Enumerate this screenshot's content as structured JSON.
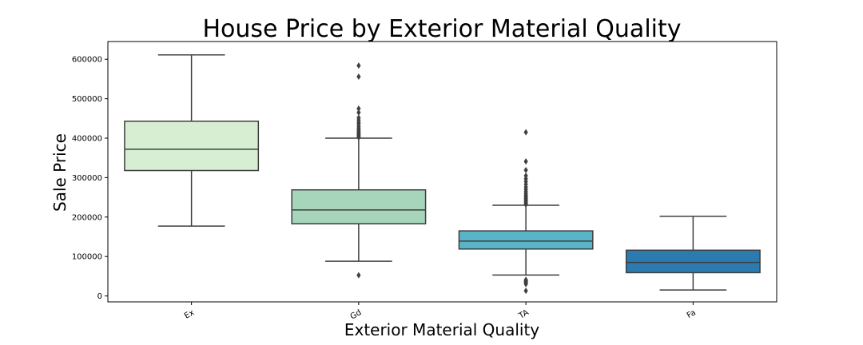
{
  "chart_data": {
    "type": "box",
    "title": "House Price by Exterior Material Quality",
    "xlabel": "Exterior Material Quality",
    "ylabel": "Sale Price",
    "ylim": [
      -15000,
      645000
    ],
    "yticks": [
      0,
      100000,
      200000,
      300000,
      400000,
      500000,
      600000
    ],
    "ytick_labels": [
      "0",
      "100000",
      "200000",
      "300000",
      "400000",
      "500000",
      "600000"
    ],
    "categories": [
      "Ex",
      "Gd",
      "TA",
      "Fa"
    ],
    "grid": false,
    "boxes": [
      {
        "category": "Ex",
        "whisker_low": 177000,
        "q1": 318000,
        "median": 372000,
        "q3": 443000,
        "whisker_high": 611000,
        "color": "#d8eed3",
        "outliers": []
      },
      {
        "category": "Gd",
        "whisker_low": 88000,
        "q1": 183000,
        "median": 218000,
        "q3": 269000,
        "whisker_high": 400000,
        "color": "#a6d5bb",
        "outliers": [
          52500,
          402000,
          405000,
          408000,
          410000,
          412000,
          415000,
          418000,
          421000,
          425000,
          430000,
          436000,
          440000,
          446000,
          452000,
          465000,
          475000,
          556000,
          584000
        ]
      },
      {
        "category": "TA",
        "whisker_low": 53000,
        "q1": 119000,
        "median": 139000,
        "q3": 165000,
        "whisker_high": 230000,
        "color": "#5ab4c8",
        "outliers": [
          13000,
          30000,
          33000,
          35000,
          37000,
          39000,
          41000,
          232000,
          235000,
          238000,
          241000,
          244000,
          247000,
          250000,
          253000,
          256000,
          260000,
          265000,
          270000,
          276000,
          283000,
          290000,
          297000,
          305000,
          319000,
          341000,
          415000
        ]
      },
      {
        "category": "Fa",
        "whisker_low": 15000,
        "q1": 59000,
        "median": 85000,
        "q3": 116000,
        "whisker_high": 202000,
        "color": "#2b7bb0",
        "outliers": []
      }
    ]
  }
}
